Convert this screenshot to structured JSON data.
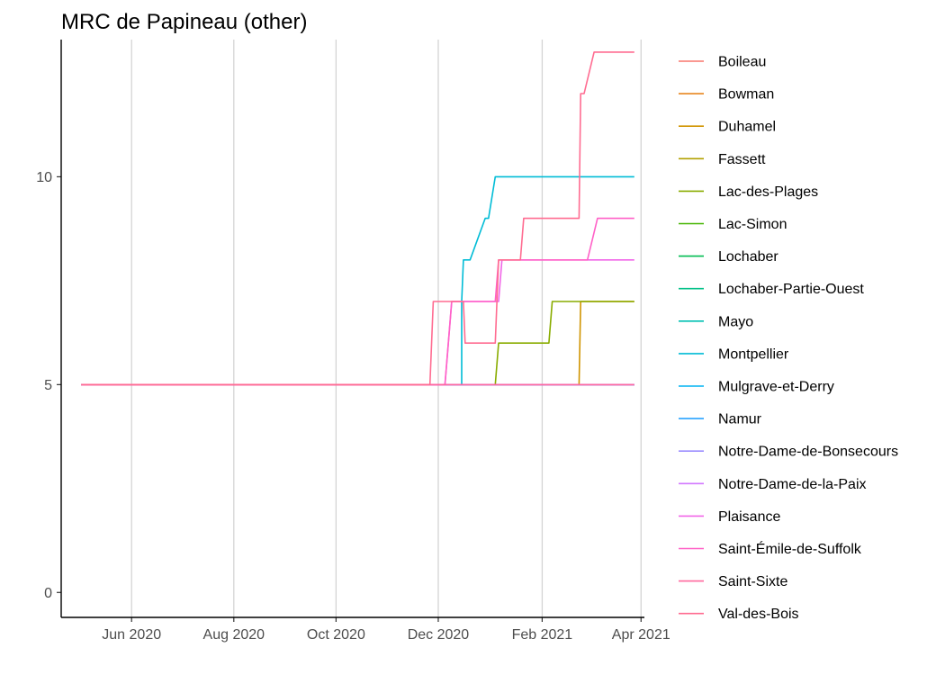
{
  "chart_data": {
    "type": "line",
    "title": "MRC de Papineau (other)",
    "xlabel": "",
    "ylabel": "",
    "x_range": [
      "2020-04-20",
      "2021-04-03"
    ],
    "ylim": [
      -0.6,
      13.3
    ],
    "y_ticks": [
      0,
      5,
      10
    ],
    "x_ticks": [
      {
        "date": "2020-06-01",
        "label": "Jun 2020"
      },
      {
        "date": "2020-08-01",
        "label": "Aug 2020"
      },
      {
        "date": "2020-10-01",
        "label": "Oct 2020"
      },
      {
        "date": "2020-12-01",
        "label": "Dec 2020"
      },
      {
        "date": "2021-02-01",
        "label": "Feb 2021"
      },
      {
        "date": "2021-04-01",
        "label": "Apr 2021"
      }
    ],
    "grid": "vertical major lines",
    "legend_position": "right",
    "series": [
      {
        "name": "Boileau",
        "color": "#F8766D",
        "points": [
          [
            "2020-05-02",
            5
          ],
          [
            "2021-03-28",
            5
          ]
        ]
      },
      {
        "name": "Bowman",
        "color": "#E7851E",
        "points": [
          [
            "2020-05-02",
            5
          ],
          [
            "2021-03-28",
            5
          ]
        ]
      },
      {
        "name": "Duhamel",
        "color": "#D09400",
        "points": [
          [
            "2020-05-02",
            5
          ],
          [
            "2021-02-23",
            5
          ],
          [
            "2021-02-24",
            7
          ],
          [
            "2021-03-28",
            7
          ]
        ]
      },
      {
        "name": "Fassett",
        "color": "#B2A100",
        "points": [
          [
            "2020-05-02",
            5
          ],
          [
            "2021-03-28",
            5
          ]
        ]
      },
      {
        "name": "Lac-des-Plages",
        "color": "#89AC00",
        "points": [
          [
            "2020-05-02",
            5
          ],
          [
            "2021-01-04",
            5
          ],
          [
            "2021-01-06",
            6
          ],
          [
            "2021-02-05",
            6
          ],
          [
            "2021-02-07",
            7
          ],
          [
            "2021-03-28",
            7
          ]
        ]
      },
      {
        "name": "Lac-Simon",
        "color": "#45B500",
        "points": [
          [
            "2020-05-02",
            5
          ],
          [
            "2021-03-28",
            5
          ]
        ]
      },
      {
        "name": "Lochaber",
        "color": "#00BC51",
        "points": [
          [
            "2020-05-02",
            5
          ],
          [
            "2021-03-28",
            5
          ]
        ]
      },
      {
        "name": "Lochaber-Partie-Ouest",
        "color": "#00C087",
        "points": [
          [
            "2020-05-02",
            5
          ],
          [
            "2021-03-28",
            5
          ]
        ]
      },
      {
        "name": "Mayo",
        "color": "#00C0B2",
        "points": [
          [
            "2020-05-02",
            5
          ],
          [
            "2021-03-28",
            5
          ]
        ]
      },
      {
        "name": "Montpellier",
        "color": "#00BCD6",
        "points": [
          [
            "2020-05-02",
            5
          ],
          [
            "2020-12-15",
            5
          ],
          [
            "2020-12-15",
            7
          ],
          [
            "2020-12-16",
            8
          ],
          [
            "2020-12-20",
            8
          ],
          [
            "2020-12-29",
            9
          ],
          [
            "2020-12-31",
            9
          ],
          [
            "2021-01-04",
            10
          ],
          [
            "2021-03-28",
            10
          ]
        ]
      },
      {
        "name": "Mulgrave-et-Derry",
        "color": "#00B3F2",
        "points": [
          [
            "2020-05-02",
            5
          ],
          [
            "2021-03-28",
            5
          ]
        ]
      },
      {
        "name": "Namur",
        "color": "#29A3FF",
        "points": [
          [
            "2020-05-02",
            5
          ],
          [
            "2021-03-28",
            5
          ]
        ]
      },
      {
        "name": "Notre-Dame-de-Bonsecours",
        "color": "#9C8DFF",
        "points": [
          [
            "2020-05-02",
            5
          ],
          [
            "2021-03-28",
            5
          ]
        ]
      },
      {
        "name": "Notre-Dame-de-la-Paix",
        "color": "#D277FF",
        "points": [
          [
            "2020-05-02",
            5
          ],
          [
            "2021-03-28",
            5
          ]
        ]
      },
      {
        "name": "Plaisance",
        "color": "#F166E8",
        "points": [
          [
            "2020-05-02",
            5
          ],
          [
            "2020-12-05",
            5
          ],
          [
            "2020-12-09",
            7
          ],
          [
            "2021-01-06",
            7
          ],
          [
            "2021-01-08",
            8
          ],
          [
            "2021-03-28",
            8
          ]
        ]
      },
      {
        "name": "Saint-Émile-de-Suffolk",
        "color": "#FF61C7",
        "points": [
          [
            "2020-05-02",
            5
          ],
          [
            "2020-12-05",
            5
          ],
          [
            "2020-12-09",
            7
          ],
          [
            "2021-01-04",
            7
          ],
          [
            "2021-01-06",
            8
          ],
          [
            "2021-02-28",
            8
          ],
          [
            "2021-03-06",
            9
          ],
          [
            "2021-03-28",
            9
          ]
        ]
      },
      {
        "name": "Saint-Sixte",
        "color": "#FF689E",
        "points": [
          [
            "2020-05-02",
            5
          ],
          [
            "2021-03-28",
            5
          ]
        ]
      },
      {
        "name": "Val-des-Bois",
        "color": "#FF6C91",
        "points": [
          [
            "2020-05-02",
            5
          ],
          [
            "2020-11-26",
            5
          ],
          [
            "2020-11-28",
            7
          ],
          [
            "2020-12-16",
            7
          ],
          [
            "2020-12-17",
            6
          ],
          [
            "2021-01-04",
            6
          ],
          [
            "2021-01-06",
            8
          ],
          [
            "2021-01-19",
            8
          ],
          [
            "2021-01-21",
            9
          ],
          [
            "2021-02-23",
            9
          ],
          [
            "2021-02-24",
            12
          ],
          [
            "2021-02-26",
            12
          ],
          [
            "2021-03-04",
            13
          ],
          [
            "2021-03-28",
            13
          ]
        ]
      }
    ]
  }
}
